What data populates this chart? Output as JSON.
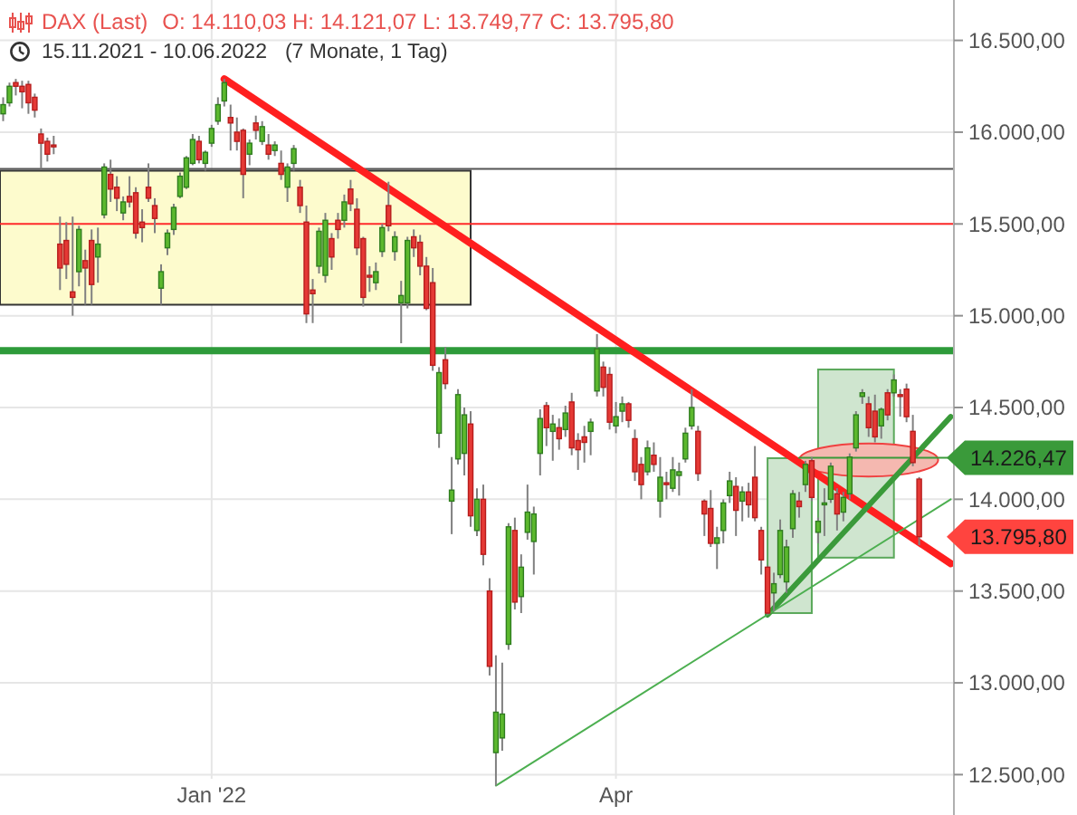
{
  "chart_data": {
    "type": "candlestick",
    "title": "DAX (Last)",
    "subtitle": "O: 14.110,03 H: 14.121,07 L: 13.749,77 C: 13.795,80",
    "annotations": [
      "15.11.2021 - 10.06.2022",
      "(7 Monate, 1 Tag)"
    ],
    "categories": [
      null,
      null,
      null,
      null,
      null,
      null,
      null,
      null,
      null,
      null,
      null,
      null,
      null,
      null,
      null,
      null,
      null,
      null,
      null,
      null,
      null,
      null,
      null,
      null,
      null,
      null,
      null,
      null,
      null,
      null,
      null,
      null,
      null,
      "Jan '22",
      null,
      null,
      null,
      null,
      null,
      null,
      null,
      null,
      null,
      null,
      null,
      null,
      null,
      null,
      null,
      null,
      null,
      null,
      null,
      null,
      null,
      null,
      null,
      null,
      null,
      null,
      null,
      null,
      null,
      null,
      null,
      null,
      null,
      null,
      null,
      null,
      null,
      null,
      null,
      null,
      null,
      null,
      null,
      null,
      null,
      null,
      null,
      null,
      null,
      null,
      null,
      null,
      null,
      null,
      null,
      null,
      null,
      null,
      null,
      null,
      null,
      null,
      null,
      "Apr",
      null,
      null,
      null,
      null,
      null,
      null,
      null,
      null,
      null,
      null,
      null,
      null,
      null,
      null,
      null,
      null,
      null,
      null,
      null,
      null,
      null,
      null,
      null,
      null,
      null,
      null,
      null,
      null,
      null,
      null,
      null,
      null,
      null,
      null,
      null,
      null,
      null,
      null,
      null,
      null,
      null,
      null,
      null,
      null,
      null,
      null,
      null,
      null,
      null,
      null,
      null,
      null,
      null
    ],
    "ohlc": [
      [
        16100,
        16190,
        16060,
        16150
      ],
      [
        16160,
        16270,
        16140,
        16250
      ],
      [
        16270,
        16290,
        16200,
        16250
      ],
      [
        16250,
        16280,
        16130,
        16220
      ],
      [
        16260,
        16280,
        16100,
        16160
      ],
      [
        16190,
        16210,
        16080,
        16120
      ],
      [
        15990,
        16020,
        15800,
        15940
      ],
      [
        15950,
        15970,
        15840,
        15880
      ],
      [
        15930,
        15980,
        15880,
        15920
      ],
      [
        15390,
        15540,
        15140,
        15260
      ],
      [
        15410,
        15510,
        15200,
        15280
      ],
      [
        15130,
        15540,
        15000,
        15100
      ],
      [
        15240,
        15490,
        15160,
        15470
      ],
      [
        15300,
        15360,
        15060,
        15260
      ],
      [
        15410,
        15470,
        15060,
        15170
      ],
      [
        15320,
        15480,
        15180,
        15390
      ],
      [
        15550,
        15830,
        15530,
        15810
      ],
      [
        15770,
        15850,
        15620,
        15690
      ],
      [
        15700,
        15760,
        15570,
        15640
      ],
      [
        15560,
        15650,
        15520,
        15620
      ],
      [
        15650,
        15760,
        15590,
        15620
      ],
      [
        15670,
        15700,
        15420,
        15450
      ],
      [
        15510,
        15580,
        15400,
        15480
      ],
      [
        15700,
        15830,
        15620,
        15640
      ],
      [
        15600,
        15640,
        15450,
        15530
      ],
      [
        15150,
        15280,
        15060,
        15240
      ],
      [
        15370,
        15470,
        15330,
        15450
      ],
      [
        15470,
        15610,
        15440,
        15590
      ],
      [
        15650,
        15780,
        15640,
        15760
      ],
      [
        15700,
        15870,
        15690,
        15860
      ],
      [
        15830,
        15990,
        15820,
        15960
      ],
      [
        15950,
        15980,
        15830,
        15850
      ],
      [
        15830,
        15900,
        15790,
        15890
      ],
      [
        15940,
        16040,
        15920,
        16020
      ],
      [
        16060,
        16190,
        16040,
        16150
      ],
      [
        16170,
        16290,
        16140,
        16270
      ],
      [
        16080,
        16150,
        15900,
        16050
      ],
      [
        16000,
        16080,
        15900,
        15950
      ],
      [
        16010,
        16020,
        15640,
        15770
      ],
      [
        15880,
        15960,
        15820,
        15940
      ],
      [
        16050,
        16090,
        15960,
        16010
      ],
      [
        15950,
        16060,
        15930,
        16030
      ],
      [
        15930,
        15990,
        15850,
        15880
      ],
      [
        15900,
        15950,
        15870,
        15930
      ],
      [
        15830,
        15900,
        15740,
        15770
      ],
      [
        15700,
        15830,
        15620,
        15810
      ],
      [
        15830,
        15930,
        15790,
        15910
      ],
      [
        15700,
        15740,
        15560,
        15600
      ],
      [
        15510,
        15600,
        14960,
        15010
      ],
      [
        15140,
        15200,
        14960,
        15120
      ],
      [
        15270,
        15480,
        15230,
        15460
      ],
      [
        15220,
        15560,
        15180,
        15520
      ],
      [
        15420,
        15450,
        15250,
        15320
      ],
      [
        15520,
        15560,
        15420,
        15470
      ],
      [
        15520,
        15660,
        15480,
        15620
      ],
      [
        15690,
        15740,
        15570,
        15610
      ],
      [
        15580,
        15640,
        15330,
        15370
      ],
      [
        15420,
        15430,
        15050,
        15100
      ],
      [
        15220,
        15270,
        15130,
        15210
      ],
      [
        15180,
        15290,
        15140,
        15240
      ],
      [
        15350,
        15500,
        15320,
        15480
      ],
      [
        15600,
        15730,
        15460,
        15490
      ],
      [
        15350,
        15460,
        15300,
        15430
      ],
      [
        15070,
        15190,
        14850,
        15110
      ],
      [
        15070,
        15430,
        15040,
        15410
      ],
      [
        15430,
        15470,
        15320,
        15370
      ],
      [
        15400,
        15440,
        15220,
        15270
      ],
      [
        15270,
        15320,
        15030,
        15040
      ],
      [
        15180,
        15260,
        14700,
        14730
      ],
      [
        14360,
        14720,
        14280,
        14690
      ],
      [
        14760,
        14830,
        14600,
        14630
      ],
      [
        13990,
        14230,
        13810,
        14050
      ],
      [
        14220,
        14600,
        14190,
        14570
      ],
      [
        14250,
        14500,
        14130,
        14460
      ],
      [
        14410,
        14480,
        13850,
        13910
      ],
      [
        13830,
        14060,
        13800,
        14000
      ],
      [
        14000,
        14080,
        13640,
        13700
      ],
      [
        13500,
        13570,
        13040,
        13090
      ],
      [
        12620,
        13150,
        12440,
        12840
      ],
      [
        12700,
        13110,
        12630,
        12830
      ],
      [
        13210,
        13870,
        13180,
        13850
      ],
      [
        13830,
        13900,
        13400,
        13440
      ],
      [
        13470,
        13700,
        13380,
        13630
      ],
      [
        13820,
        14080,
        13780,
        13930
      ],
      [
        13770,
        13960,
        13590,
        13920
      ],
      [
        14250,
        14490,
        14130,
        14440
      ],
      [
        14510,
        14530,
        14290,
        14390
      ],
      [
        14370,
        14460,
        14210,
        14410
      ],
      [
        14390,
        14440,
        14270,
        14330
      ],
      [
        14380,
        14510,
        14340,
        14470
      ],
      [
        14530,
        14580,
        14240,
        14280
      ],
      [
        14320,
        14360,
        14160,
        14270
      ],
      [
        14340,
        14400,
        14200,
        14310
      ],
      [
        14370,
        14440,
        14240,
        14420
      ],
      [
        14590,
        14900,
        14560,
        14820
      ],
      [
        14720,
        14750,
        14560,
        14610
      ],
      [
        14680,
        14720,
        14380,
        14420
      ],
      [
        14400,
        14530,
        14360,
        14450
      ],
      [
        14480,
        14560,
        14420,
        14520
      ],
      [
        14520,
        14530,
        14390,
        14430
      ],
      [
        14330,
        14380,
        14100,
        14150
      ],
      [
        14190,
        14230,
        14000,
        14080
      ],
      [
        14150,
        14320,
        14130,
        14280
      ],
      [
        14240,
        14310,
        14150,
        14190
      ],
      [
        13990,
        14230,
        13900,
        14120
      ],
      [
        14090,
        14150,
        14000,
        14080
      ],
      [
        14060,
        14230,
        14040,
        14160
      ],
      [
        14130,
        14200,
        14020,
        14150
      ],
      [
        14220,
        14390,
        14200,
        14360
      ],
      [
        14400,
        14600,
        14380,
        14500
      ],
      [
        14370,
        14400,
        14100,
        14140
      ],
      [
        13990,
        14000,
        13800,
        13920
      ],
      [
        13950,
        14050,
        13740,
        13760
      ],
      [
        13760,
        13850,
        13620,
        13790
      ],
      [
        13830,
        14000,
        13760,
        13980
      ],
      [
        14020,
        14150,
        13980,
        14100
      ],
      [
        14070,
        14120,
        13800,
        13940
      ],
      [
        13990,
        14070,
        13880,
        14040
      ],
      [
        14040,
        14090,
        13900,
        13970
      ],
      [
        14120,
        14290,
        13880,
        13900
      ],
      [
        13830,
        13850,
        13590,
        13670
      ],
      [
        13630,
        13640,
        13370,
        13380
      ],
      [
        13490,
        13600,
        13390,
        13540
      ],
      [
        13590,
        13890,
        13570,
        13830
      ],
      [
        13550,
        13780,
        13490,
        13740
      ],
      [
        13840,
        14050,
        13790,
        14030
      ],
      [
        13990,
        14040,
        13900,
        13960
      ],
      [
        14080,
        14210,
        14040,
        14190
      ],
      [
        14210,
        14230,
        13990,
        14010
      ],
      [
        13820,
        13900,
        13760,
        13880
      ],
      [
        13970,
        14060,
        13800,
        13980
      ],
      [
        14000,
        14200,
        13980,
        14180
      ],
      [
        14030,
        14060,
        13830,
        13920
      ],
      [
        13930,
        14040,
        13880,
        14010
      ],
      [
        14030,
        14250,
        14000,
        14230
      ],
      [
        14280,
        14480,
        14260,
        14460
      ],
      [
        14560,
        14600,
        14520,
        14580
      ],
      [
        14520,
        14560,
        14340,
        14390
      ],
      [
        14480,
        14570,
        14310,
        14340
      ],
      [
        14400,
        14500,
        14330,
        14490
      ],
      [
        14580,
        14600,
        14430,
        14460
      ],
      [
        14580,
        14680,
        14560,
        14650
      ],
      [
        14570,
        14600,
        14450,
        14560
      ],
      [
        14600,
        14630,
        14420,
        14450
      ],
      [
        14370,
        14460,
        14180,
        14200
      ],
      [
        14110.03,
        14121.07,
        13749.77,
        13795.8
      ],
      null,
      null,
      null,
      null,
      null
    ],
    "value_labels": [
      null,
      null,
      null,
      null,
      null,
      null,
      null,
      null,
      null,
      null,
      null,
      null,
      null,
      null,
      null,
      null,
      null,
      null,
      null,
      null,
      null,
      null,
      null,
      null,
      null,
      null,
      null,
      null,
      null,
      null,
      null,
      null,
      null,
      null,
      null,
      null,
      null,
      null,
      null,
      null,
      null,
      null,
      null,
      null,
      null,
      null,
      null,
      null,
      null,
      null,
      null,
      null,
      null,
      null,
      null,
      null,
      null,
      null,
      null,
      null,
      null,
      null,
      null,
      null,
      null,
      null,
      null,
      null,
      null,
      null,
      null,
      null,
      null,
      null,
      null,
      null,
      null,
      null,
      null,
      null,
      null,
      null,
      null,
      null,
      null,
      null,
      null,
      null,
      null,
      null,
      null,
      null,
      null,
      null,
      null,
      null,
      null,
      null,
      null,
      null,
      null,
      null,
      null,
      null,
      null,
      null,
      null,
      null,
      null,
      null,
      null,
      null,
      null,
      null,
      null,
      null,
      null,
      null,
      null,
      null,
      null,
      null,
      null,
      null,
      null,
      null,
      null,
      null,
      null,
      null,
      null,
      null,
      null,
      null,
      null,
      null,
      null,
      null,
      null,
      null,
      null,
      null,
      null,
      null,
      null,
      "13.795,80",
      null,
      null,
      null,
      null,
      null
    ],
    "series": [
      {
        "type": "line",
        "color": "#ff1f1f",
        "values": [
          null,
          null,
          null,
          null,
          null,
          null,
          null,
          null,
          null,
          null,
          null,
          null,
          null,
          null,
          null,
          null,
          null,
          null,
          null,
          null,
          null,
          null,
          null,
          null,
          null,
          null,
          null,
          null,
          null,
          null,
          null,
          null,
          null,
          null,
          null,
          16290,
          null,
          null,
          null,
          null,
          null,
          null,
          null,
          null,
          null,
          null,
          null,
          null,
          null,
          null,
          null,
          null,
          null,
          null,
          null,
          null,
          null,
          null,
          null,
          null,
          null,
          null,
          null,
          null,
          null,
          null,
          null,
          null,
          null,
          null,
          null,
          null,
          null,
          null,
          null,
          null,
          null,
          null,
          null,
          null,
          null,
          null,
          null,
          null,
          null,
          null,
          null,
          null,
          null,
          null,
          null,
          null,
          null,
          null,
          null,
          null,
          null,
          null,
          null,
          null,
          null,
          null,
          null,
          null,
          null,
          null,
          null,
          null,
          null,
          null,
          null,
          null,
          null,
          null,
          null,
          null,
          null,
          null,
          null,
          null,
          null,
          null,
          null,
          null,
          null,
          null,
          null,
          null,
          null,
          null,
          null,
          null,
          null,
          null,
          null,
          null,
          null,
          null,
          null,
          null,
          null,
          null,
          null,
          null,
          null,
          null,
          null,
          null,
          null,
          null,
          13650
        ]
      },
      {
        "type": "line",
        "color": "#3a9a3a",
        "values": [
          null,
          null,
          null,
          null,
          null,
          null,
          null,
          null,
          null,
          null,
          null,
          null,
          null,
          null,
          null,
          null,
          null,
          null,
          null,
          null,
          null,
          null,
          null,
          null,
          null,
          null,
          null,
          null,
          null,
          null,
          null,
          null,
          null,
          null,
          null,
          null,
          null,
          null,
          null,
          null,
          null,
          null,
          null,
          null,
          null,
          null,
          null,
          null,
          null,
          null,
          null,
          null,
          null,
          null,
          null,
          null,
          null,
          null,
          null,
          null,
          null,
          null,
          null,
          null,
          null,
          null,
          null,
          null,
          null,
          null,
          null,
          null,
          null,
          null,
          null,
          null,
          null,
          null,
          null,
          null,
          null,
          null,
          null,
          null,
          null,
          null,
          null,
          null,
          null,
          null,
          null,
          null,
          null,
          null,
          null,
          null,
          null,
          null,
          null,
          null,
          null,
          null,
          null,
          null,
          null,
          null,
          null,
          null,
          null,
          null,
          null,
          null,
          null,
          null,
          null,
          null,
          null,
          null,
          null,
          null,
          null,
          13370,
          null,
          null,
          null,
          null,
          null,
          null,
          null,
          null,
          null,
          null,
          null,
          null,
          null,
          null,
          null,
          null,
          null,
          null,
          null,
          null,
          null,
          null,
          null,
          null,
          null,
          null,
          null,
          null,
          14450
        ]
      },
      {
        "type": "line",
        "color": "#4caf50",
        "values": [
          null,
          null,
          null,
          null,
          null,
          null,
          null,
          null,
          null,
          null,
          null,
          null,
          null,
          null,
          null,
          null,
          null,
          null,
          null,
          null,
          null,
          null,
          null,
          null,
          null,
          null,
          null,
          null,
          null,
          null,
          null,
          null,
          null,
          null,
          null,
          null,
          null,
          null,
          null,
          null,
          null,
          null,
          null,
          null,
          null,
          null,
          null,
          null,
          null,
          null,
          null,
          null,
          null,
          null,
          null,
          null,
          null,
          null,
          null,
          null,
          null,
          null,
          null,
          null,
          null,
          null,
          null,
          null,
          null,
          null,
          null,
          null,
          null,
          null,
          null,
          null,
          null,
          null,
          12440,
          null,
          null,
          null,
          null,
          null,
          null,
          null,
          null,
          null,
          null,
          null,
          null,
          null,
          null,
          null,
          null,
          null,
          null,
          null,
          null,
          null,
          null,
          null,
          null,
          null,
          null,
          null,
          null,
          null,
          null,
          null,
          null,
          null,
          null,
          null,
          null,
          null,
          null,
          null,
          null,
          null,
          null,
          null,
          null,
          null,
          null,
          null,
          null,
          null,
          null,
          null,
          null,
          null,
          null,
          null,
          null,
          null,
          null,
          null,
          null,
          null,
          null,
          null,
          null,
          null,
          null,
          null,
          null,
          null,
          null,
          null,
          14000
        ]
      },
      {
        "type": "line",
        "color": "#3a9a3a",
        "values": [
          null,
          null,
          null,
          null,
          null,
          null,
          null,
          null,
          null,
          null,
          null,
          null,
          null,
          null,
          null,
          null,
          null,
          null,
          null,
          null,
          null,
          null,
          null,
          null,
          null,
          null,
          null,
          null,
          null,
          null,
          null,
          null,
          null,
          null,
          null,
          null,
          null,
          null,
          null,
          null,
          null,
          null,
          null,
          null,
          null,
          null,
          null,
          null,
          null,
          null,
          null,
          null,
          null,
          null,
          null,
          null,
          null,
          null,
          null,
          null,
          null,
          null,
          null,
          null,
          null,
          null,
          null,
          null,
          null,
          null,
          null,
          null,
          null,
          null,
          null,
          null,
          null,
          null,
          null,
          null,
          null,
          null,
          null,
          null,
          null,
          null,
          null,
          null,
          null,
          null,
          null,
          null,
          null,
          null,
          null,
          null,
          null,
          null,
          null,
          null,
          null,
          null,
          null,
          null,
          null,
          null,
          null,
          null,
          null,
          null,
          null,
          null,
          null,
          null,
          null,
          null,
          null,
          null,
          null,
          null,
          null,
          null,
          null,
          null,
          null,
          null,
          14226.47,
          null,
          null,
          null,
          null,
          null,
          null,
          null,
          null,
          null,
          null,
          null,
          null,
          null,
          null,
          null,
          null,
          null,
          null,
          null,
          null,
          null,
          null,
          null,
          14226.47
        ],
        "value_labels": [
          null,
          null,
          null,
          null,
          null,
          null,
          null,
          null,
          null,
          null,
          null,
          null,
          null,
          null,
          null,
          null,
          null,
          null,
          null,
          null,
          null,
          null,
          null,
          null,
          null,
          null,
          null,
          null,
          null,
          null,
          null,
          null,
          null,
          null,
          null,
          null,
          null,
          null,
          null,
          null,
          null,
          null,
          null,
          null,
          null,
          null,
          null,
          null,
          null,
          null,
          null,
          null,
          null,
          null,
          null,
          null,
          null,
          null,
          null,
          null,
          null,
          null,
          null,
          null,
          null,
          null,
          null,
          null,
          null,
          null,
          null,
          null,
          null,
          null,
          null,
          null,
          null,
          null,
          null,
          null,
          null,
          null,
          null,
          null,
          null,
          null,
          null,
          null,
          null,
          null,
          null,
          null,
          null,
          null,
          null,
          null,
          null,
          null,
          null,
          null,
          null,
          null,
          null,
          null,
          null,
          null,
          null,
          null,
          null,
          null,
          null,
          null,
          null,
          null,
          null,
          null,
          null,
          null,
          null,
          null,
          null,
          null,
          null,
          null,
          null,
          null,
          null,
          null,
          null,
          null,
          null,
          null,
          null,
          null,
          null,
          null,
          null,
          null,
          null,
          null,
          null,
          null,
          null,
          null,
          null,
          null,
          null,
          null,
          null,
          null,
          "14.226,47"
        ]
      }
    ],
    "ylim": [
      12280,
      16720
    ],
    "yticks": [
      {
        "value": 12500,
        "label": "12.500,00"
      },
      {
        "value": 13000,
        "label": "13.000,00"
      },
      {
        "value": 13500,
        "label": "13.500,00"
      },
      {
        "value": 14000,
        "label": "14.000,00"
      },
      {
        "value": 14500,
        "label": "14.500,00"
      },
      {
        "value": 15000,
        "label": "15.000,00"
      },
      {
        "value": 15500,
        "label": "15.500,00"
      },
      {
        "value": 16000,
        "label": "16.000,00"
      },
      {
        "value": 16500,
        "label": "16.500,00"
      }
    ],
    "grid": true,
    "ref_lines": [
      {
        "axis": "y",
        "value": 15800,
        "color": "#555555"
      },
      {
        "axis": "y",
        "value": 15500,
        "color": "#ff2a2a"
      },
      {
        "axis": "y",
        "value": 14810,
        "color": "#2e9b3a"
      }
    ]
  }
}
